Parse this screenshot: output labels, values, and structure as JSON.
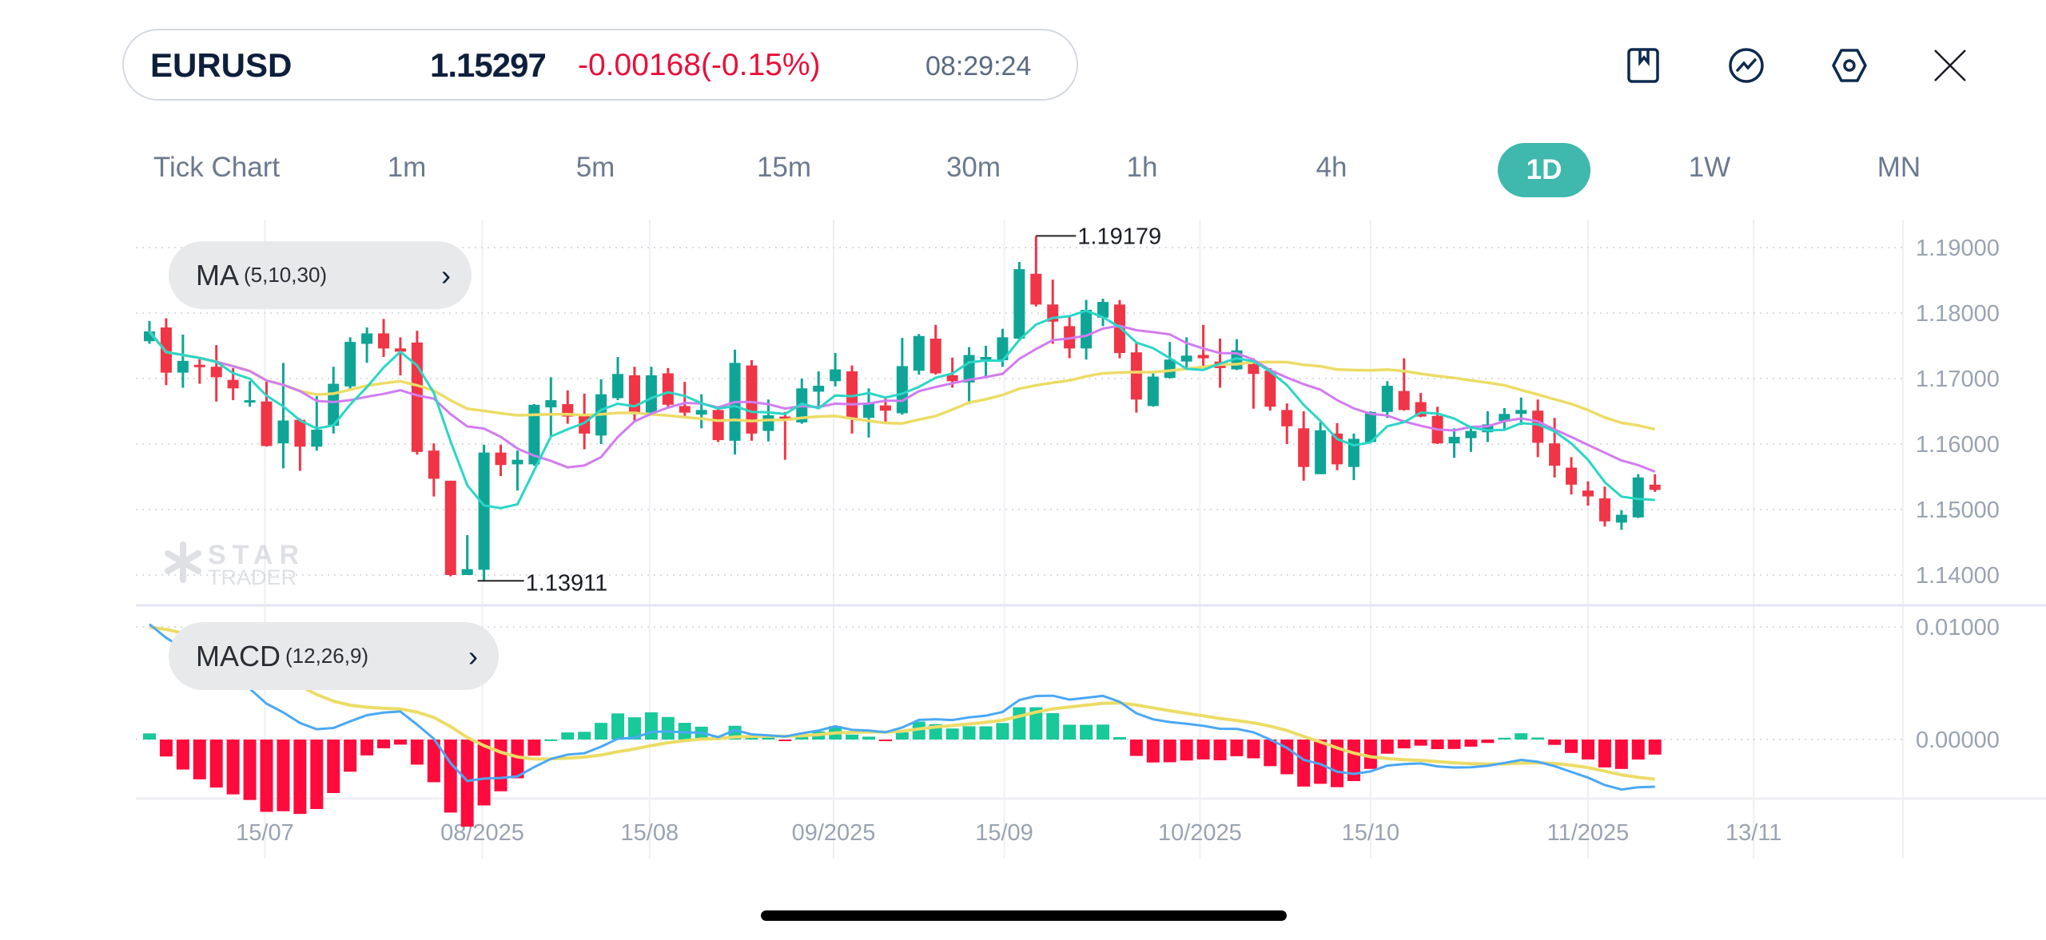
{
  "header": {
    "symbol": "EURUSD",
    "price": "1.15297",
    "change": "-0.00168(-0.15%)",
    "time": "08:29:24",
    "icons": [
      "bookmark-icon",
      "chart-trend-icon",
      "settings-hex-icon",
      "close-icon"
    ]
  },
  "timeframes": {
    "items": [
      "Tick Chart",
      "1m",
      "5m",
      "15m",
      "30m",
      "1h",
      "4h",
      "1D",
      "1W",
      "MN"
    ],
    "active": "1D"
  },
  "indicators": {
    "ma": {
      "name": "MA",
      "params": "(5,10,30)"
    },
    "macd": {
      "name": "MACD",
      "params": "(12,26,9)"
    }
  },
  "watermark": {
    "line1": "STAR",
    "line2": "TRADER"
  },
  "colors": {
    "up": "#0ea597",
    "down": "#f03546",
    "ma5": "#2ad6c6",
    "ma10": "#d17cf0",
    "ma30": "#ecdc66",
    "dif": "#4aa8f5",
    "dea": "#ecdc66",
    "hist_up": "#18c99a",
    "hist_down": "#ff0a3c",
    "accent": "#3fb8ad"
  },
  "chart_data": {
    "type": "candlestick",
    "title": "EURUSD 1D",
    "price_axis": {
      "ticks": [
        "1.19000",
        "1.18000",
        "1.17000",
        "1.16000",
        "1.15000",
        "1.14000"
      ],
      "range": [
        1.1365,
        1.1935
      ]
    },
    "macd_axis": {
      "ticks": [
        "0.01000",
        "0.00000"
      ],
      "range": [
        -0.0055,
        0.0125
      ]
    },
    "x_ticks": [
      {
        "label": "15/07",
        "index": 6.9
      },
      {
        "label": "08/2025",
        "index": 19.9
      },
      {
        "label": "15/08",
        "index": 29.9
      },
      {
        "label": "09/2025",
        "index": 40.9
      },
      {
        "label": "15/09",
        "index": 51.1
      },
      {
        "label": "10/2025",
        "index": 62.8
      },
      {
        "label": "15/10",
        "index": 73
      },
      {
        "label": "11/2025",
        "index": 86
      },
      {
        "label": "13/11",
        "index": 95.9
      }
    ],
    "annotations": {
      "high": {
        "label": "1.19179",
        "index": 53
      },
      "low": {
        "label": "1.13911",
        "index": 20
      }
    },
    "ma_periods": [
      5,
      10,
      30
    ],
    "ohlc": [
      [
        1.1757,
        1.1788,
        1.1753,
        1.1772
      ],
      [
        1.1778,
        1.1792,
        1.169,
        1.1709
      ],
      [
        1.1709,
        1.1767,
        1.1686,
        1.1727
      ],
      [
        1.1721,
        1.1731,
        1.1692,
        1.1718
      ],
      [
        1.1718,
        1.1751,
        1.1665,
        1.1702
      ],
      [
        1.1698,
        1.1716,
        1.1667,
        1.1685
      ],
      [
        1.1665,
        1.1696,
        1.1657,
        1.1667
      ],
      [
        1.1665,
        1.1696,
        1.1596,
        1.1597
      ],
      [
        1.1601,
        1.1724,
        1.1563,
        1.1636
      ],
      [
        1.1637,
        1.1639,
        1.1559,
        1.1596
      ],
      [
        1.1596,
        1.1673,
        1.159,
        1.1622
      ],
      [
        1.1628,
        1.1718,
        1.1616,
        1.1692
      ],
      [
        1.1688,
        1.1763,
        1.1682,
        1.1756
      ],
      [
        1.1753,
        1.1778,
        1.1724,
        1.1769
      ],
      [
        1.1769,
        1.1791,
        1.1733,
        1.1746
      ],
      [
        1.1746,
        1.1763,
        1.1705,
        1.1741
      ],
      [
        1.1755,
        1.1773,
        1.1584,
        1.1588
      ],
      [
        1.159,
        1.1601,
        1.152,
        1.1547
      ],
      [
        1.1544,
        1.1544,
        1.1398,
        1.14
      ],
      [
        1.14,
        1.1461,
        1.14,
        1.1409
      ],
      [
        1.1408,
        1.1599,
        1.13911,
        1.1587
      ],
      [
        1.1587,
        1.1599,
        1.1551,
        1.1568
      ],
      [
        1.1569,
        1.159,
        1.1529,
        1.1576
      ],
      [
        1.1569,
        1.1661,
        1.1567,
        1.166
      ],
      [
        1.1656,
        1.1702,
        1.1612,
        1.1667
      ],
      [
        1.1661,
        1.1682,
        1.1631,
        1.1642
      ],
      [
        1.1643,
        1.1677,
        1.1592,
        1.1616
      ],
      [
        1.1613,
        1.1699,
        1.16,
        1.1676
      ],
      [
        1.167,
        1.1733,
        1.1667,
        1.1707
      ],
      [
        1.1705,
        1.1718,
        1.1635,
        1.1647
      ],
      [
        1.1648,
        1.1718,
        1.1647,
        1.1705
      ],
      [
        1.1708,
        1.1716,
        1.1657,
        1.166
      ],
      [
        1.1658,
        1.1695,
        1.1641,
        1.1648
      ],
      [
        1.1645,
        1.1676,
        1.1624,
        1.1652
      ],
      [
        1.1652,
        1.1657,
        1.1603,
        1.1606
      ],
      [
        1.1605,
        1.1744,
        1.1584,
        1.1724
      ],
      [
        1.172,
        1.1728,
        1.1605,
        1.1616
      ],
      [
        1.162,
        1.1668,
        1.1604,
        1.1644
      ],
      [
        1.1642,
        1.1649,
        1.1576,
        1.1639
      ],
      [
        1.1633,
        1.17,
        1.1631,
        1.1685
      ],
      [
        1.168,
        1.1711,
        1.1653,
        1.1689
      ],
      [
        1.1696,
        1.1739,
        1.1688,
        1.1714
      ],
      [
        1.1711,
        1.172,
        1.1616,
        1.1638
      ],
      [
        1.164,
        1.1685,
        1.161,
        1.1663
      ],
      [
        1.1659,
        1.1671,
        1.1633,
        1.1651
      ],
      [
        1.1647,
        1.1762,
        1.1645,
        1.1719
      ],
      [
        1.1712,
        1.1768,
        1.1706,
        1.1765
      ],
      [
        1.1761,
        1.1782,
        1.1706,
        1.1708
      ],
      [
        1.1705,
        1.1732,
        1.1686,
        1.1696
      ],
      [
        1.1694,
        1.1748,
        1.1661,
        1.1736
      ],
      [
        1.1729,
        1.175,
        1.1703,
        1.1733
      ],
      [
        1.1728,
        1.1776,
        1.1718,
        1.1763
      ],
      [
        1.1761,
        1.1878,
        1.1759,
        1.1867
      ],
      [
        1.186,
        1.19179,
        1.181,
        1.1813
      ],
      [
        1.1813,
        1.1851,
        1.1753,
        1.1787
      ],
      [
        1.178,
        1.1796,
        1.1731,
        1.1746
      ],
      [
        1.1746,
        1.182,
        1.1729,
        1.1805
      ],
      [
        1.1793,
        1.1822,
        1.178,
        1.1817
      ],
      [
        1.1813,
        1.182,
        1.1731,
        1.1739
      ],
      [
        1.174,
        1.1754,
        1.1648,
        1.1668
      ],
      [
        1.1658,
        1.1709,
        1.1657,
        1.1703
      ],
      [
        1.1701,
        1.1756,
        1.17,
        1.1729
      ],
      [
        1.1726,
        1.1763,
        1.1714,
        1.1735
      ],
      [
        1.1736,
        1.1782,
        1.1718,
        1.1731
      ],
      [
        1.1726,
        1.1761,
        1.1686,
        1.1716
      ],
      [
        1.1714,
        1.176,
        1.1713,
        1.1743
      ],
      [
        1.1722,
        1.1731,
        1.1654,
        1.1707
      ],
      [
        1.1712,
        1.1716,
        1.1651,
        1.1657
      ],
      [
        1.1652,
        1.1662,
        1.16,
        1.1627
      ],
      [
        1.1624,
        1.165,
        1.1544,
        1.1565
      ],
      [
        1.1554,
        1.1633,
        1.1554,
        1.1621
      ],
      [
        1.1616,
        1.1632,
        1.156,
        1.1569
      ],
      [
        1.1565,
        1.1616,
        1.1545,
        1.1608
      ],
      [
        1.1603,
        1.165,
        1.1602,
        1.1649
      ],
      [
        1.1649,
        1.1696,
        1.164,
        1.1689
      ],
      [
        1.1681,
        1.1731,
        1.1651,
        1.1652
      ],
      [
        1.1664,
        1.1678,
        1.1641,
        1.1642
      ],
      [
        1.1643,
        1.1657,
        1.16,
        1.1601
      ],
      [
        1.1601,
        1.1624,
        1.1579,
        1.1611
      ],
      [
        1.1609,
        1.1624,
        1.1588,
        1.162
      ],
      [
        1.1618,
        1.165,
        1.1603,
        1.163
      ],
      [
        1.1635,
        1.1655,
        1.1622,
        1.1646
      ],
      [
        1.1646,
        1.1671,
        1.1629,
        1.1652
      ],
      [
        1.1651,
        1.1668,
        1.158,
        1.1602
      ],
      [
        1.1601,
        1.164,
        1.1549,
        1.1567
      ],
      [
        1.1564,
        1.158,
        1.1523,
        1.1538
      ],
      [
        1.1529,
        1.1543,
        1.1506,
        1.152
      ],
      [
        1.1517,
        1.1535,
        1.1474,
        1.1482
      ],
      [
        1.148,
        1.1499,
        1.1469,
        1.1492
      ],
      [
        1.1488,
        1.1554,
        1.1487,
        1.1549
      ],
      [
        1.1538,
        1.1554,
        1.1527,
        1.153
      ]
    ]
  }
}
